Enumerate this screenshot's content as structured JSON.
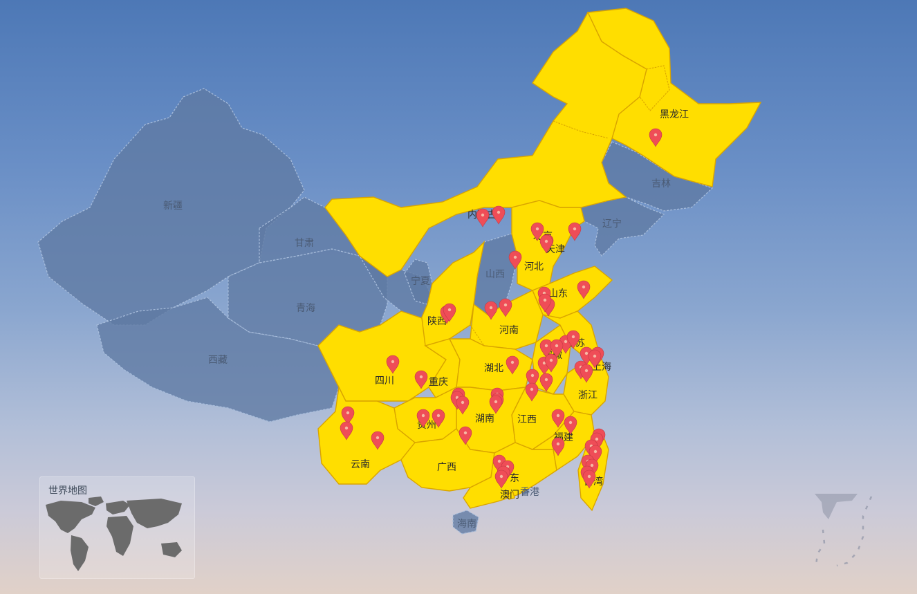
{
  "map": {
    "provinces": [
      {
        "name": "黑龙江",
        "highlighted": true
      },
      {
        "name": "吉林",
        "highlighted": false
      },
      {
        "name": "辽宁",
        "highlighted": false
      },
      {
        "name": "内蒙古",
        "highlighted": true
      },
      {
        "name": "北京",
        "highlighted": true
      },
      {
        "name": "天津",
        "highlighted": true
      },
      {
        "name": "河北",
        "highlighted": true
      },
      {
        "name": "山西",
        "highlighted": false
      },
      {
        "name": "山东",
        "highlighted": true
      },
      {
        "name": "河南",
        "highlighted": true
      },
      {
        "name": "陕西",
        "highlighted": true
      },
      {
        "name": "宁夏",
        "highlighted": false
      },
      {
        "name": "甘肃",
        "highlighted": false
      },
      {
        "name": "青海",
        "highlighted": false
      },
      {
        "name": "新疆",
        "highlighted": false
      },
      {
        "name": "西藏",
        "highlighted": false
      },
      {
        "name": "四川",
        "highlighted": true
      },
      {
        "name": "重庆",
        "highlighted": true
      },
      {
        "name": "湖北",
        "highlighted": true
      },
      {
        "name": "安徽",
        "highlighted": true
      },
      {
        "name": "江苏",
        "highlighted": true
      },
      {
        "name": "上海",
        "highlighted": true
      },
      {
        "name": "浙江",
        "highlighted": true
      },
      {
        "name": "江西",
        "highlighted": true
      },
      {
        "name": "湖南",
        "highlighted": true
      },
      {
        "name": "贵州",
        "highlighted": true
      },
      {
        "name": "云南",
        "highlighted": true
      },
      {
        "name": "广西",
        "highlighted": true
      },
      {
        "name": "广东",
        "highlighted": true
      },
      {
        "name": "福建",
        "highlighted": true
      },
      {
        "name": "台湾",
        "highlighted": true
      },
      {
        "name": "海南",
        "highlighted": false
      },
      {
        "name": "香港",
        "highlighted": false
      },
      {
        "name": "澳门",
        "highlighted": true
      }
    ],
    "colors": {
      "highlight": "#ffde00",
      "highlight_border": "#d9a400",
      "inactive": "#5f7aa3",
      "marker": "#ef4d57"
    },
    "marker_icon": "map-pin-icon",
    "marker_count": 60
  },
  "world_map": {
    "title": "世界地图"
  }
}
